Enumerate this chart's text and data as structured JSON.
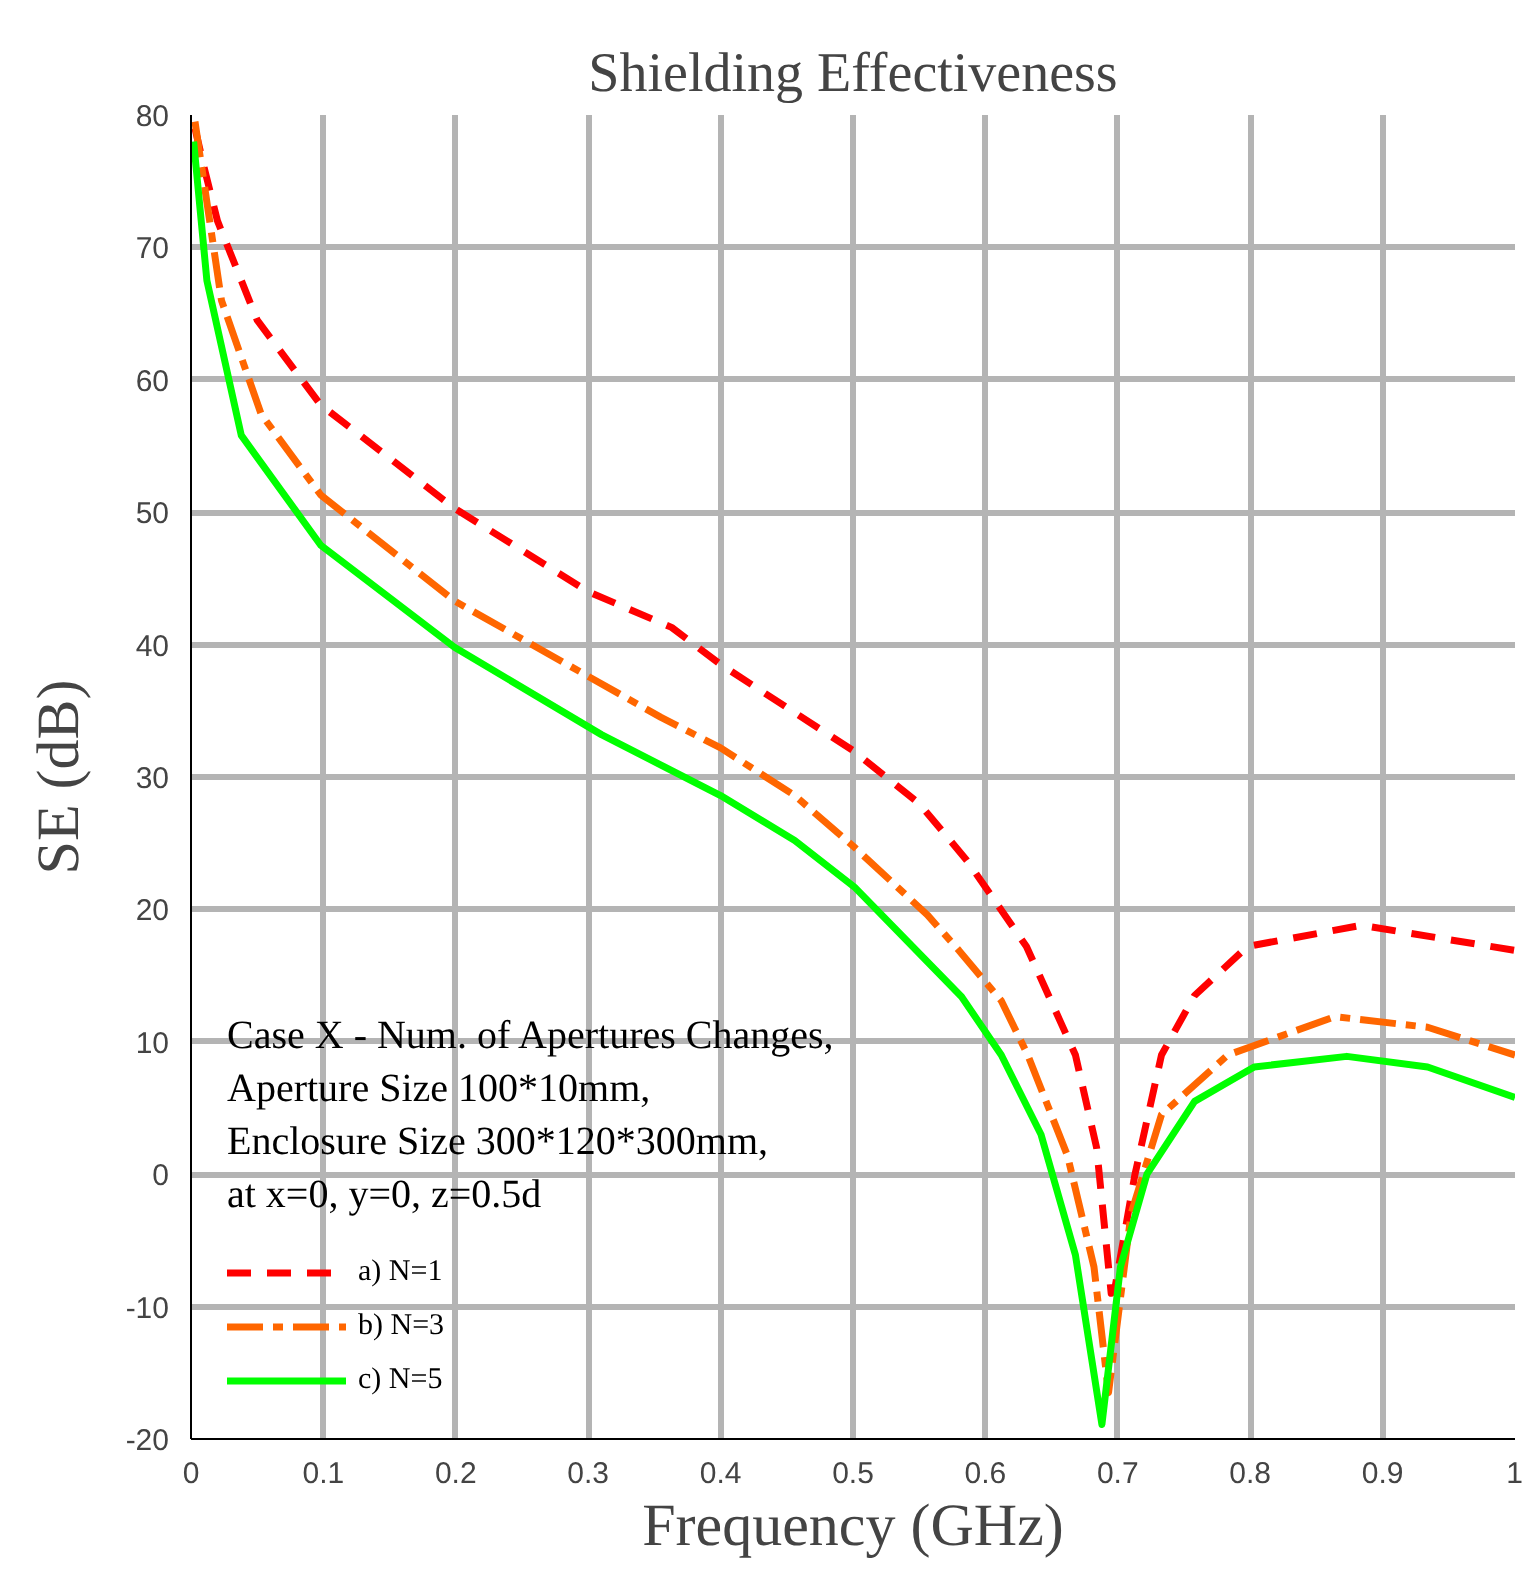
{
  "chart_data": {
    "type": "line",
    "title": "Shielding Effectiveness",
    "xlabel": "Frequency (GHz)",
    "ylabel": "SE (dB)",
    "legend_title": "Case X - Num. of Apertures Changes,\nAperture Size 100*10mm,\nEnclosure Size 300*120*300mm,\nat x=0, y=0, z=0.5d",
    "xlim": [
      0,
      1
    ],
    "ylim": [
      -20,
      80
    ],
    "xticks": [
      0,
      0.1,
      0.2,
      0.3,
      0.4,
      0.5,
      0.6,
      0.7,
      0.8,
      0.9,
      1
    ],
    "yticks": [
      -20,
      -10,
      0,
      10,
      20,
      30,
      40,
      50,
      60,
      70,
      80
    ],
    "grid": true,
    "legend": "bottom left",
    "series": [
      {
        "name": "a) N=1",
        "color": "#ff0000",
        "line_style": "dashed",
        "x": [
          0.003,
          0.01,
          0.02,
          0.05,
          0.098,
          0.199,
          0.3,
          0.363,
          0.4,
          0.5,
          0.55,
          0.586,
          0.631,
          0.668,
          0.684,
          0.695,
          0.698,
          0.713,
          0.733,
          0.758,
          0.798,
          0.884,
          1.0
        ],
        "values": [
          79,
          76,
          72,
          64.5,
          58.1,
          50.3,
          44,
          41.3,
          38.5,
          32,
          28,
          23.7,
          17.2,
          9,
          2,
          -9,
          -8.5,
          0,
          9,
          13.5,
          17.2,
          18.8,
          16.9
        ]
      },
      {
        "name": "b) N=3",
        "color": "#ff6600",
        "line_style": "dashdot",
        "x": [
          0.003,
          0.023,
          0.053,
          0.098,
          0.199,
          0.355,
          0.4,
          0.456,
          0.501,
          0.556,
          0.58,
          0.612,
          0.632,
          0.662,
          0.682,
          0.693,
          0.71,
          0.733,
          0.783,
          0.864,
          0.934,
          1.0
        ],
        "values": [
          79.5,
          66,
          57.4,
          51.3,
          43.3,
          34.5,
          32.2,
          28.6,
          24.7,
          19.6,
          16.9,
          13.1,
          9,
          1.4,
          -7,
          -16.5,
          -3,
          4.5,
          9,
          11.9,
          11.1,
          9
        ]
      },
      {
        "name": "c) N=5",
        "color": "#00ff00",
        "line_style": "solid",
        "x": [
          0.002,
          0.012,
          0.038,
          0.098,
          0.199,
          0.31,
          0.355,
          0.4,
          0.456,
          0.501,
          0.582,
          0.612,
          0.642,
          0.668,
          0.688,
          0.702,
          0.722,
          0.758,
          0.803,
          0.873,
          0.934,
          1.0
        ],
        "values": [
          78,
          67.5,
          55.8,
          47.5,
          39.8,
          33.2,
          30.9,
          28.6,
          25.2,
          21.7,
          13.4,
          9,
          3,
          -6.1,
          -18.9,
          -7,
          0,
          5.5,
          8.1,
          8.9,
          8.1,
          5.8
        ]
      }
    ]
  }
}
